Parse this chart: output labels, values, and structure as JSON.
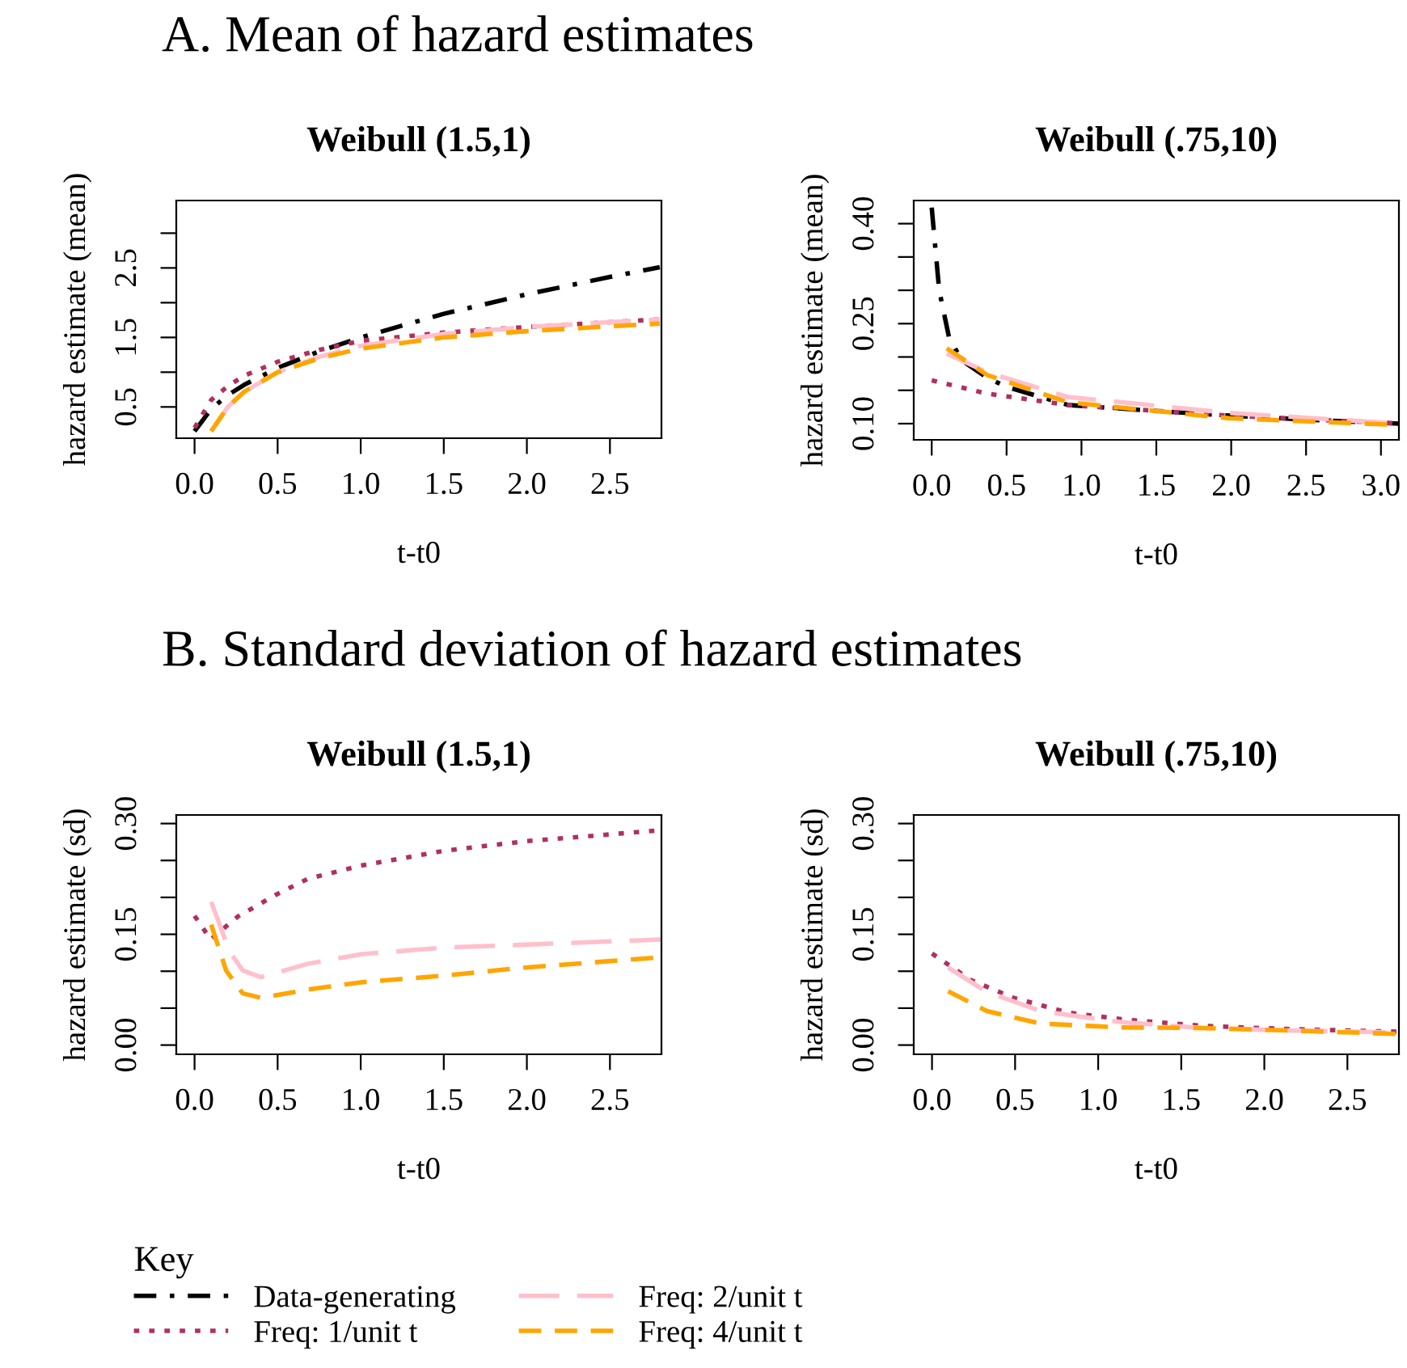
{
  "chart_data": [
    {
      "type": "line",
      "title": "Weibull (1.5,1)",
      "xlabel": "t-t0",
      "ylabel": "hazard estimate (mean)",
      "annotations": [
        "A. Mean of hazard estimates"
      ],
      "legend": "bottom",
      "legend_title": "Key",
      "xlim": [
        -0.11,
        2.81
      ],
      "xticks": [
        {
          "value": 0,
          "label": "0.0"
        },
        0.5,
        {
          "value": 1,
          "label": "1.0"
        },
        1.5,
        {
          "value": 2,
          "label": "2.0"
        },
        2.5
      ],
      "ylim": [
        0.05,
        3.47
      ],
      "yticks": [
        0.5,
        {
          "value": 1.0,
          "label": null
        },
        1.5,
        {
          "value": 2.0,
          "label": null
        },
        2.5,
        {
          "value": 3.0,
          "label": null
        }
      ],
      "series": [
        {
          "name": "Data-generating",
          "color": "#000000",
          "line_style": "dashdot",
          "x": [
            0.0,
            0.1,
            0.2,
            0.3,
            0.5,
            0.75,
            1.0,
            1.5,
            2.0,
            2.5,
            2.8
          ],
          "values": [
            0.15,
            0.47,
            0.67,
            0.82,
            1.06,
            1.3,
            1.5,
            1.84,
            2.12,
            2.37,
            2.51
          ]
        },
        {
          "name": "Freq: 1/unit t",
          "color": "#b03060",
          "line_style": "dotted",
          "x": [
            0.0,
            0.1,
            0.2,
            0.3,
            0.5,
            0.75,
            1.0,
            1.5,
            2.0,
            2.5,
            2.8
          ],
          "values": [
            0.2,
            0.6,
            0.8,
            0.95,
            1.15,
            1.32,
            1.45,
            1.57,
            1.65,
            1.72,
            1.76
          ]
        },
        {
          "name": "Freq: 2/unit t",
          "color": "#ffc0cb",
          "line_style": "longdash",
          "x": [
            0.1,
            0.2,
            0.3,
            0.5,
            0.75,
            1.0,
            1.5,
            2.0,
            2.5,
            2.8
          ],
          "values": [
            0.15,
            0.5,
            0.72,
            1.0,
            1.22,
            1.38,
            1.55,
            1.65,
            1.72,
            1.76
          ]
        },
        {
          "name": "Freq: 4/unit t",
          "color": "#ffa500",
          "line_style": "dashed",
          "x": [
            0.1,
            0.2,
            0.3,
            0.5,
            0.75,
            1.0,
            1.5,
            2.0,
            2.5,
            2.8
          ],
          "values": [
            0.15,
            0.5,
            0.72,
            1.0,
            1.2,
            1.34,
            1.5,
            1.59,
            1.66,
            1.7
          ]
        }
      ]
    },
    {
      "type": "line",
      "title": "Weibull (.75,10)",
      "xlabel": "t-t0",
      "ylabel": "hazard estimate (mean)",
      "xlim": [
        -0.12,
        3.12
      ],
      "xticks": [
        {
          "value": 0,
          "label": "0.0"
        },
        0.5,
        {
          "value": 1,
          "label": "1.0"
        },
        1.5,
        {
          "value": 2,
          "label": "2.0"
        },
        2.5,
        {
          "value": 3,
          "label": "3.0"
        }
      ],
      "ylim": [
        0.0757,
        0.4347
      ],
      "yticks": [
        {
          "value": 0.1,
          "label": "0.10"
        },
        {
          "value": 0.15,
          "label": null
        },
        {
          "value": 0.2,
          "label": null
        },
        0.25,
        {
          "value": 0.3,
          "label": null
        },
        {
          "value": 0.35,
          "label": null
        },
        {
          "value": 0.4,
          "label": "0.40"
        }
      ],
      "series": [
        {
          "color": "#000000",
          "line_style": "dashdot",
          "x": [
            0.0,
            0.05,
            0.115,
            0.2,
            0.37,
            0.5,
            0.91,
            1.5,
            1.99,
            2.5,
            3.12
          ],
          "values": [
            0.424,
            0.3,
            0.23,
            0.195,
            0.169,
            0.155,
            0.128,
            0.119,
            0.112,
            0.106,
            0.1
          ]
        },
        {
          "color": "#b03060",
          "line_style": "dotted",
          "x": [
            0.0,
            0.37,
            0.91,
            1.99,
            3.12
          ],
          "values": [
            0.165,
            0.145,
            0.128,
            0.112,
            0.1
          ]
        },
        {
          "color": "#ffc0cb",
          "line_style": "longdash",
          "x": [
            0.1,
            0.37,
            0.91,
            1.99,
            3.12
          ],
          "values": [
            0.205,
            0.177,
            0.14,
            0.116,
            0.1
          ]
        },
        {
          "color": "#ffa500",
          "line_style": "dashed",
          "x": [
            0.1,
            0.37,
            0.91,
            1.99,
            3.12
          ],
          "values": [
            0.213,
            0.173,
            0.132,
            0.108,
            0.098
          ]
        }
      ]
    },
    {
      "type": "line",
      "title": "Weibull (1.5,1)",
      "xlabel": "t-t0",
      "ylabel": "hazard estimate (sd)",
      "annotations": [
        "B. Standard deviation of hazard estimates"
      ],
      "xlim": [
        -0.11,
        2.81
      ],
      "xticks": [
        {
          "value": 0,
          "label": "0.0"
        },
        0.5,
        {
          "value": 1,
          "label": "1.0"
        },
        1.5,
        {
          "value": 2,
          "label": "2.0"
        },
        2.5
      ],
      "ylim": [
        -0.0125,
        0.3116
      ],
      "yticks": [
        {
          "value": 0,
          "label": "0.00"
        },
        {
          "value": 0.05,
          "label": null
        },
        {
          "value": 0.1,
          "label": null
        },
        0.15,
        {
          "value": 0.2,
          "label": null
        },
        {
          "value": 0.25,
          "label": null
        },
        {
          "value": 0.3,
          "label": "0.30"
        }
      ],
      "series": [
        {
          "color": "#b03060",
          "line_style": "dotted",
          "x": [
            0.0,
            0.097,
            0.26,
            0.485,
            0.68,
            1.0,
            1.5,
            1.99,
            2.81
          ],
          "values": [
            0.175,
            0.143,
            0.174,
            0.203,
            0.225,
            0.243,
            0.263,
            0.276,
            0.291
          ]
        },
        {
          "color": "#ffc0cb",
          "line_style": "longdash",
          "x": [
            0.1,
            0.21,
            0.29,
            0.4,
            0.68,
            1.0,
            1.5,
            1.99,
            2.81
          ],
          "values": [
            0.194,
            0.127,
            0.101,
            0.092,
            0.11,
            0.123,
            0.132,
            0.136,
            0.143
          ]
        },
        {
          "color": "#ffa500",
          "line_style": "dashed",
          "x": [
            0.1,
            0.19,
            0.29,
            0.4,
            0.68,
            1.0,
            1.5,
            1.99,
            2.81
          ],
          "values": [
            0.163,
            0.101,
            0.07,
            0.064,
            0.075,
            0.085,
            0.094,
            0.105,
            0.119
          ]
        }
      ]
    },
    {
      "type": "line",
      "title": "Weibull (.75,10)",
      "xlabel": "t-t0",
      "ylabel": "hazard estimate (sd)",
      "xlim": [
        -0.11,
        2.81
      ],
      "xticks": [
        {
          "value": 0,
          "label": "0.0"
        },
        0.5,
        {
          "value": 1,
          "label": "1.0"
        },
        1.5,
        {
          "value": 2,
          "label": "2.0"
        },
        2.5
      ],
      "ylim": [
        -0.0125,
        0.3116
      ],
      "yticks": [
        {
          "value": 0,
          "label": "0.00"
        },
        {
          "value": 0.05,
          "label": null
        },
        {
          "value": 0.1,
          "label": null
        },
        0.15,
        {
          "value": 0.2,
          "label": null
        },
        {
          "value": 0.25,
          "label": null
        },
        {
          "value": 0.3,
          "label": "0.30"
        }
      ],
      "series": [
        {
          "color": "#b03060",
          "line_style": "dotted",
          "x": [
            0.0,
            0.234,
            0.49,
            0.82,
            1.14,
            1.63,
            2.11,
            2.81
          ],
          "values": [
            0.124,
            0.088,
            0.064,
            0.044,
            0.035,
            0.026,
            0.022,
            0.018
          ]
        },
        {
          "color": "#ffc0cb",
          "line_style": "longdash",
          "x": [
            0.097,
            0.33,
            0.655,
            1.14,
            1.63,
            2.11,
            2.81
          ],
          "values": [
            0.105,
            0.072,
            0.046,
            0.031,
            0.023,
            0.02,
            0.017
          ]
        },
        {
          "color": "#ffa500",
          "line_style": "dashed",
          "x": [
            0.097,
            0.33,
            0.655,
            1.14,
            1.63,
            2.11,
            2.81
          ],
          "values": [
            0.073,
            0.046,
            0.029,
            0.024,
            0.023,
            0.02,
            0.015
          ]
        }
      ]
    }
  ]
}
